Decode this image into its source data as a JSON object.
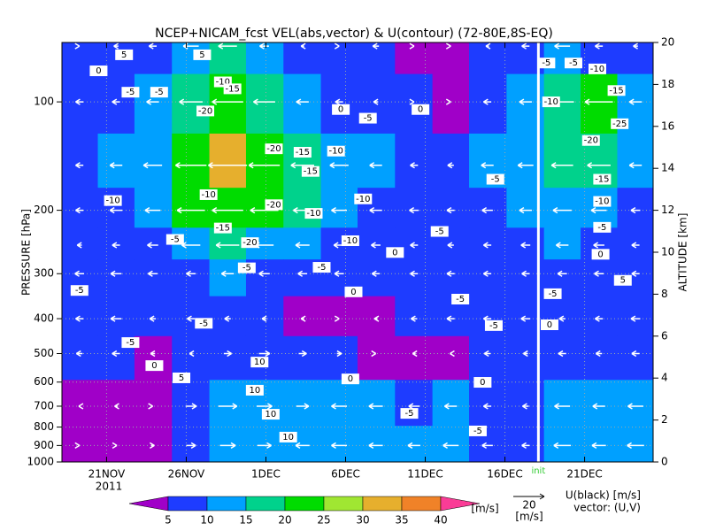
{
  "chart_data": {
    "type": "heatmap",
    "title": "NCEP+NICAM_fcst VEL(abs,vector) & U(contour)   (72-80E,8S-EQ)",
    "ylabel": "PRESSURE [hPa]",
    "y2label": "ALTITUDE [km]",
    "year_label": "2011",
    "x": [
      3.3,
      5.6,
      7.9,
      10.3,
      12.6,
      14.9,
      17.3,
      19.6,
      21.9,
      24.3,
      26.6,
      28.9,
      31.3,
      33.6,
      35.9,
      38.2
    ],
    "pressure": [
      70,
      100,
      150,
      200,
      250,
      300,
      400,
      500,
      700,
      900
    ],
    "speed": [
      [
        8,
        7,
        9,
        12,
        15,
        10,
        8,
        6,
        9,
        4,
        3,
        7,
        8,
        12,
        8,
        7
      ],
      [
        8,
        9,
        10,
        18,
        22,
        17,
        12,
        9,
        7,
        6,
        4,
        8,
        10,
        18,
        20,
        12
      ],
      [
        7,
        10,
        14,
        24,
        30,
        24,
        18,
        14,
        10,
        8,
        7,
        10,
        12,
        16,
        17,
        10
      ],
      [
        6,
        9,
        12,
        22,
        24,
        20,
        15,
        12,
        9,
        8,
        7,
        9,
        10,
        14,
        12,
        8
      ],
      [
        5,
        7,
        9,
        14,
        18,
        14,
        11,
        9,
        8,
        7,
        6,
        7,
        8,
        10,
        9,
        7
      ],
      [
        7,
        8,
        8,
        8,
        10,
        9,
        8,
        8,
        7,
        7,
        7,
        7,
        7,
        8,
        8,
        7
      ],
      [
        6,
        8,
        6,
        7,
        6,
        5,
        4,
        3,
        4,
        6,
        7,
        7,
        8,
        6,
        7,
        8
      ],
      [
        5,
        6,
        4,
        6,
        8,
        9,
        8,
        6,
        3,
        4,
        3,
        6,
        5,
        7,
        6,
        7
      ],
      [
        3,
        4,
        3,
        9,
        13,
        12,
        10,
        12,
        11,
        8,
        10,
        7,
        6,
        12,
        10,
        12
      ],
      [
        3,
        3,
        4,
        8,
        14,
        12,
        11,
        12,
        11,
        10,
        12,
        9,
        7,
        13,
        11,
        13
      ]
    ],
    "u": [
      [
        0,
        -3,
        -5,
        -10,
        -12,
        -6,
        -2,
        0,
        -4,
        0,
        0,
        -2,
        -5,
        -10,
        -5,
        -3
      ],
      [
        -5,
        -5,
        -8,
        -15,
        -20,
        -14,
        -8,
        -5,
        -3,
        0,
        0,
        -5,
        -8,
        -15,
        -18,
        -8
      ],
      [
        -5,
        -8,
        -12,
        -20,
        -25,
        -20,
        -15,
        -12,
        -8,
        -5,
        -4,
        -8,
        -10,
        -14,
        -15,
        -8
      ],
      [
        -5,
        -8,
        -10,
        -18,
        -20,
        -18,
        -12,
        -10,
        -8,
        -6,
        -5,
        -7,
        -8,
        -12,
        -10,
        -6
      ],
      [
        -3,
        -5,
        -7,
        -12,
        -15,
        -12,
        -9,
        -7,
        -6,
        -5,
        -4,
        -5,
        -6,
        -8,
        -7,
        -5
      ],
      [
        -6,
        -7,
        -6,
        -6,
        -8,
        -7,
        -6,
        -6,
        -5,
        -5,
        -5,
        -5,
        -5,
        -6,
        -6,
        -5
      ],
      [
        -5,
        -7,
        -4,
        -5,
        -4,
        -3,
        -2,
        0,
        -2,
        -4,
        -5,
        -5,
        -6,
        -4,
        -5,
        -6
      ],
      [
        -4,
        -5,
        -3,
        -2,
        5,
        7,
        5,
        3,
        0,
        -2,
        -1,
        -4,
        -3,
        -5,
        -4,
        -5
      ],
      [
        -1,
        -2,
        0,
        7,
        12,
        10,
        8,
        -10,
        -9,
        -7,
        -8,
        -5,
        -4,
        -10,
        -8,
        -10
      ],
      [
        0,
        1,
        2,
        6,
        10,
        9,
        -9,
        -10,
        -9,
        -8,
        -10,
        -7,
        -5,
        -11,
        -9,
        -11
      ]
    ],
    "xlim": [
      2.2,
      39.3
    ],
    "xticks": [
      {
        "value": 5,
        "label": "21NOV"
      },
      {
        "value": 10,
        "label": "26NOV"
      },
      {
        "value": 15,
        "label": "1DEC"
      },
      {
        "value": 20,
        "label": "6DEC"
      },
      {
        "value": 25,
        "label": "11DEC"
      },
      {
        "value": 30,
        "label": "16DEC"
      },
      {
        "value": 35,
        "label": "21DEC"
      }
    ],
    "ylim": [
      1000,
      68.4
    ],
    "yticks": [
      100,
      200,
      300,
      400,
      500,
      600,
      700,
      800,
      900,
      1000
    ],
    "log_y": true,
    "y2lim": [
      0,
      20
    ],
    "y2ticks": [
      0,
      2,
      4,
      6,
      8,
      10,
      12,
      14,
      16,
      18,
      20
    ],
    "grid": true,
    "colorbar": {
      "ticks": [
        5,
        10,
        15,
        20,
        25,
        30,
        35,
        40
      ],
      "colors": [
        "#a000c8",
        "#1e3cff",
        "#00a0ff",
        "#00d28c",
        "#00dc00",
        "#a0e632",
        "#e6af2d",
        "#f08228",
        "#fa3c96"
      ],
      "unit": "[m/s]"
    },
    "contour_color": "#000000",
    "vector_color": "#ffffff",
    "contour_labels": [
      {
        "x": 6.1,
        "y": 74,
        "value": 5
      },
      {
        "x": 11,
        "y": 74,
        "value": 5
      },
      {
        "x": 4.5,
        "y": 82,
        "value": 0
      },
      {
        "x": 6.5,
        "y": 94,
        "value": -5
      },
      {
        "x": 8.3,
        "y": 94,
        "value": -5
      },
      {
        "x": 12.3,
        "y": 88,
        "value": -10
      },
      {
        "x": 12.9,
        "y": 92,
        "value": -15
      },
      {
        "x": 11.2,
        "y": 106,
        "value": -20
      },
      {
        "x": 19.7,
        "y": 105,
        "value": 0
      },
      {
        "x": 21.4,
        "y": 111,
        "value": -5
      },
      {
        "x": 24.7,
        "y": 105,
        "value": 0
      },
      {
        "x": 15.5,
        "y": 135,
        "value": -20
      },
      {
        "x": 17.3,
        "y": 138,
        "value": -15
      },
      {
        "x": 19.4,
        "y": 137,
        "value": -10
      },
      {
        "x": 17.8,
        "y": 156,
        "value": -15
      },
      {
        "x": 11.4,
        "y": 181,
        "value": -10
      },
      {
        "x": 5.4,
        "y": 188,
        "value": -10
      },
      {
        "x": 15.5,
        "y": 193,
        "value": -20
      },
      {
        "x": 18,
        "y": 204,
        "value": -10
      },
      {
        "x": 21.1,
        "y": 186,
        "value": -10
      },
      {
        "x": 12.3,
        "y": 224,
        "value": -15
      },
      {
        "x": 14,
        "y": 246,
        "value": -20
      },
      {
        "x": 9.3,
        "y": 241,
        "value": -5
      },
      {
        "x": 20.3,
        "y": 243,
        "value": -10
      },
      {
        "x": 25.9,
        "y": 229,
        "value": -5
      },
      {
        "x": 29.4,
        "y": 164,
        "value": -5
      },
      {
        "x": 18.5,
        "y": 288,
        "value": -5
      },
      {
        "x": 13.8,
        "y": 289,
        "value": -5
      },
      {
        "x": 23.1,
        "y": 262,
        "value": 0
      },
      {
        "x": 3.3,
        "y": 334,
        "value": -5
      },
      {
        "x": 20.5,
        "y": 337,
        "value": 0
      },
      {
        "x": 27.2,
        "y": 353,
        "value": -5
      },
      {
        "x": 29.3,
        "y": 418,
        "value": -5
      },
      {
        "x": 6.5,
        "y": 466,
        "value": -5
      },
      {
        "x": 8.0,
        "y": 540,
        "value": 0
      },
      {
        "x": 9.7,
        "y": 584,
        "value": 5
      },
      {
        "x": 14.6,
        "y": 528,
        "value": 10
      },
      {
        "x": 14.3,
        "y": 632,
        "value": 10
      },
      {
        "x": 15.3,
        "y": 737,
        "value": 10
      },
      {
        "x": 16.4,
        "y": 853,
        "value": 10
      },
      {
        "x": 20.3,
        "y": 588,
        "value": 0
      },
      {
        "x": 24,
        "y": 733,
        "value": -5
      },
      {
        "x": 28.6,
        "y": 601,
        "value": 0
      },
      {
        "x": 28.3,
        "y": 820,
        "value": -5
      },
      {
        "x": 11.1,
        "y": 412,
        "value": -5
      },
      {
        "x": 32.6,
        "y": 78,
        "value": -5
      },
      {
        "x": 34.3,
        "y": 78,
        "value": -5
      },
      {
        "x": 35.8,
        "y": 81,
        "value": -10
      },
      {
        "x": 32.9,
        "y": 100,
        "value": -10
      },
      {
        "x": 37,
        "y": 93,
        "value": -15
      },
      {
        "x": 37.2,
        "y": 115,
        "value": -25
      },
      {
        "x": 35.4,
        "y": 128,
        "value": -20
      },
      {
        "x": 36.1,
        "y": 164,
        "value": -15
      },
      {
        "x": 36.1,
        "y": 189,
        "value": -10
      },
      {
        "x": 36.1,
        "y": 223,
        "value": -5
      },
      {
        "x": 36,
        "y": 265,
        "value": 0
      },
      {
        "x": 33,
        "y": 341,
        "value": -5
      },
      {
        "x": 32.8,
        "y": 416,
        "value": 0
      },
      {
        "x": 37.4,
        "y": 313,
        "value": 5
      }
    ],
    "init": {
      "x": 32.1,
      "label": "init",
      "color": "#ffffff"
    },
    "vector_key": {
      "value": 20,
      "unit": "[m/s]"
    },
    "legend_text": [
      "U(black) [m/s]",
      "vector: (U,V)"
    ]
  }
}
